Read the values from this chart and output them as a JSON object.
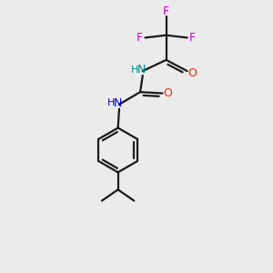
{
  "background_color": "#ebebeb",
  "bond_color": "#1a1a1a",
  "O_color": "#ff2200",
  "F_color": "#cc00cc",
  "NH1_color": "#008888",
  "NH2_color": "#0000dd",
  "lw": 1.6,
  "figsize": [
    3.0,
    3.0
  ],
  "dpi": 100,
  "xlim": [
    0,
    10
  ],
  "ylim": [
    0,
    11
  ]
}
